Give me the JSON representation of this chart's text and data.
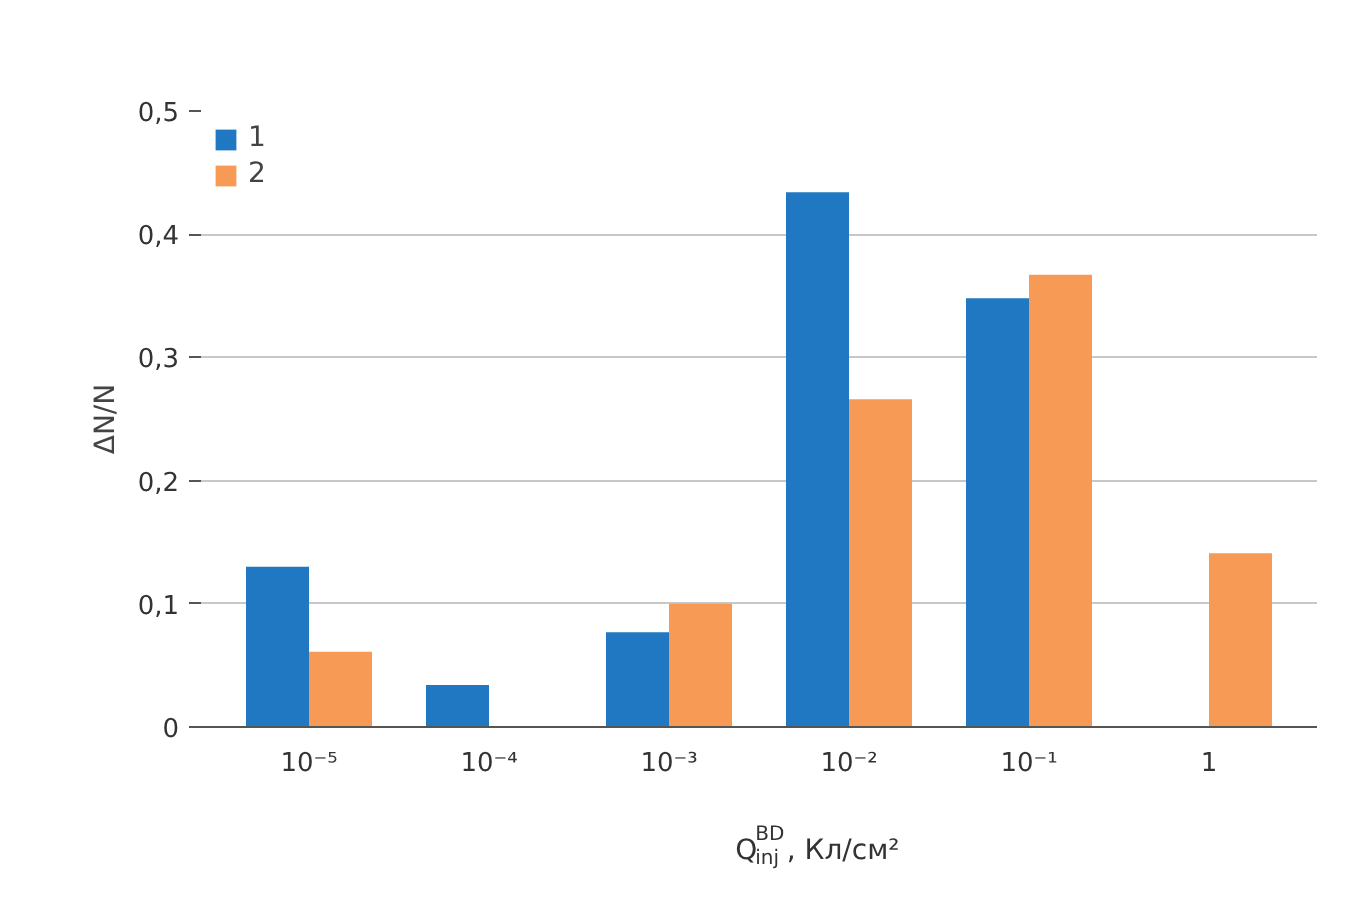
{
  "chart_data": {
    "type": "bar",
    "xlabel": "Q$^{BD}$$_{inj}$, Кл/см²",
    "ylabel": "ΔN/N",
    "categories": [
      "10⁻⁵",
      "10⁻⁴",
      "10⁻³",
      "10⁻²",
      "10⁻¹",
      "1"
    ],
    "series": [
      {
        "name": "1",
        "color": "#1f78c1",
        "values": [
          0.13,
          0.034,
          0.077,
          0.434,
          0.348,
          null
        ]
      },
      {
        "name": "2",
        "color": "#f79a55",
        "values": [
          0.061,
          null,
          0.1,
          0.266,
          0.367,
          0.141
        ]
      }
    ],
    "ylim": [
      0,
      0.5
    ],
    "yticks": [
      {
        "value": 0,
        "label": "0"
      },
      {
        "value": 0.1,
        "label": "0,1"
      },
      {
        "value": 0.2,
        "label": "0,2"
      },
      {
        "value": 0.3,
        "label": "0,3"
      },
      {
        "value": 0.4,
        "label": "0,4"
      },
      {
        "value": 0.5,
        "label": "0,5"
      }
    ],
    "grid": "y",
    "legend": "top left"
  }
}
